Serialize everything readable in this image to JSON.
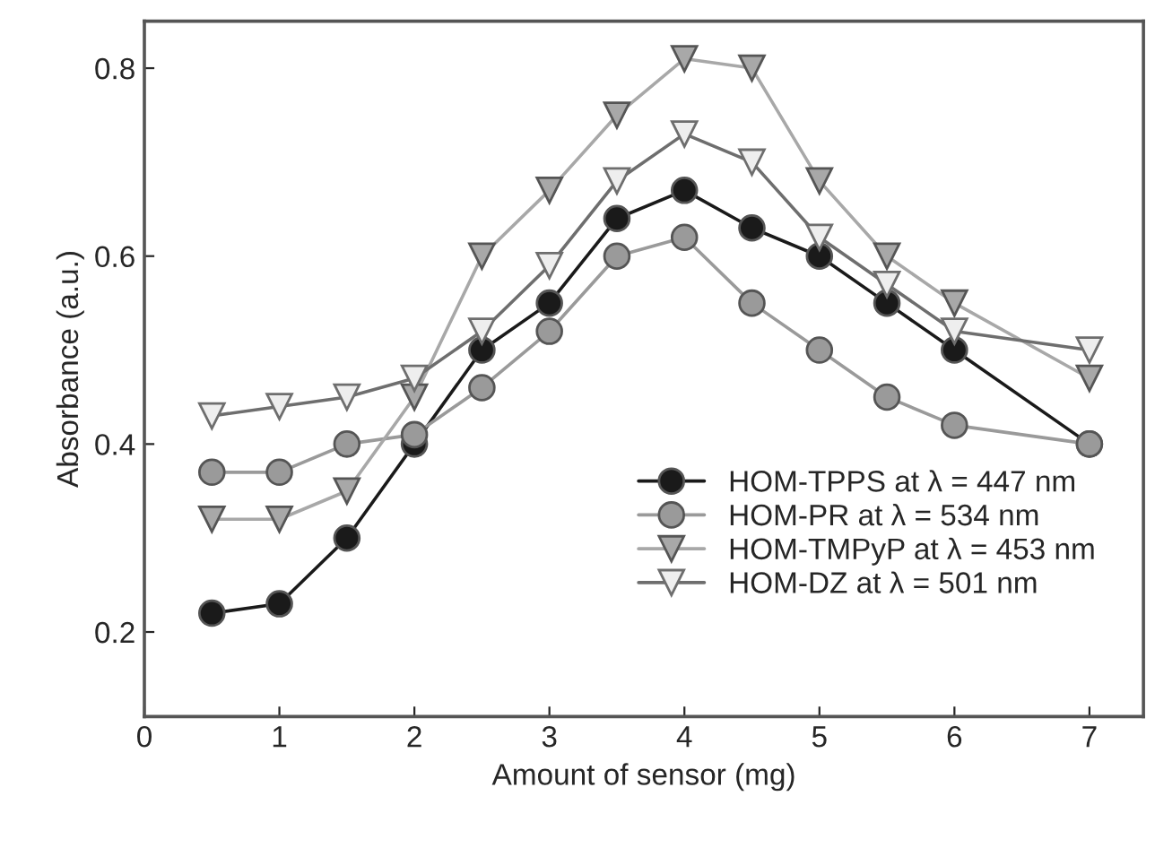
{
  "chart_data": {
    "type": "line",
    "xlabel": "Amount of sensor (mg)",
    "ylabel": "Absorbance (a.u.)",
    "x": [
      0.5,
      1,
      1.5,
      2,
      2.5,
      3,
      3.5,
      4,
      4.5,
      5,
      5.5,
      6,
      7
    ],
    "xlim": [
      0,
      7.4
    ],
    "xticks": [
      0,
      1,
      2,
      3,
      4,
      5,
      6,
      7
    ],
    "ylim": [
      0.11,
      0.85
    ],
    "yticks": [
      0.2,
      0.4,
      0.6,
      0.8
    ],
    "grid": false,
    "legend": "bottom right",
    "series": [
      {
        "name": "HOM-TPPS at λ = 447 nm",
        "color": "#1a1a1a",
        "marker": "circle",
        "values": [
          0.22,
          0.23,
          0.3,
          0.4,
          0.5,
          0.55,
          0.64,
          0.67,
          0.63,
          0.6,
          0.55,
          0.5,
          0.4
        ]
      },
      {
        "name": "HOM-PR at λ = 534 nm",
        "color": "#9a9a9a",
        "marker": "circle",
        "values": [
          0.37,
          0.37,
          0.4,
          0.41,
          0.46,
          0.52,
          0.6,
          0.62,
          0.55,
          0.5,
          0.45,
          0.42,
          0.4
        ]
      },
      {
        "name": "HOM-TMPyP at λ = 453 nm",
        "color": "#a8a8a8",
        "marker": "triangle",
        "values": [
          0.32,
          0.32,
          0.35,
          0.45,
          0.6,
          0.67,
          0.75,
          0.81,
          0.8,
          0.68,
          0.6,
          0.55,
          0.47
        ]
      },
      {
        "name": "HOM-DZ at λ = 501 nm",
        "color": "#6e6e6e",
        "marker": "triangle_open",
        "values": [
          0.43,
          0.44,
          0.45,
          0.47,
          0.52,
          0.59,
          0.68,
          0.73,
          0.7,
          0.62,
          0.57,
          0.52,
          0.5
        ]
      }
    ]
  }
}
